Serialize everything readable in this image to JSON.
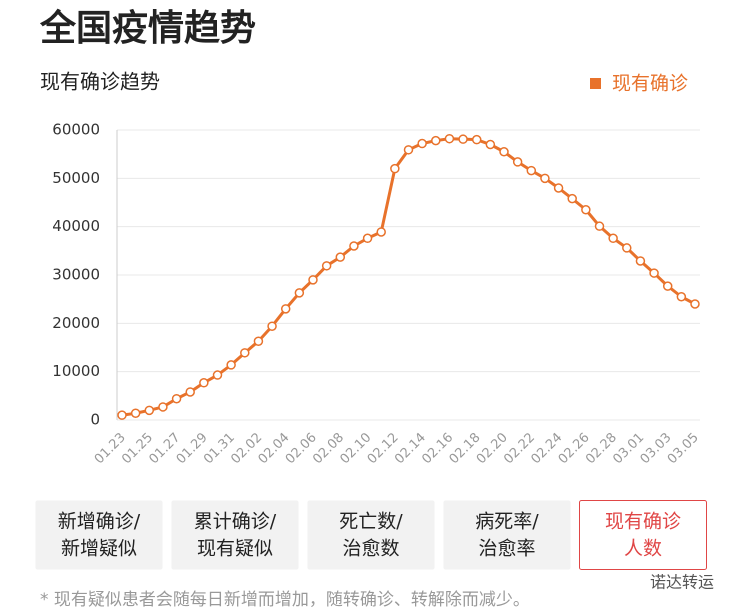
{
  "header": {
    "title": "全国疫情趋势"
  },
  "chart_data": {
    "type": "line",
    "title": "现有确诊趋势",
    "categories": [
      "01.23",
      null,
      "01.25",
      null,
      "01.27",
      null,
      "01.29",
      null,
      "01.31",
      null,
      "02.02",
      null,
      "02.04",
      null,
      "02.06",
      null,
      "02.08",
      null,
      "02.10",
      null,
      "02.12",
      null,
      "02.14",
      null,
      "02.16",
      null,
      "02.18",
      null,
      "02.20",
      null,
      "02.22",
      null,
      "02.24",
      null,
      "02.26",
      null,
      "02.28",
      null,
      "03.01",
      null,
      "03.03",
      null,
      "03.05"
    ],
    "series": [
      {
        "name": "现有确诊",
        "color": "#e8722b",
        "values": [
          1000,
          1400,
          2000,
          2700,
          4400,
          5800,
          7700,
          9300,
          11400,
          13900,
          16300,
          19400,
          23000,
          26300,
          29000,
          31900,
          33700,
          36000,
          37600,
          38900,
          52000,
          55900,
          57200,
          57800,
          58200,
          58100,
          58000,
          57000,
          55500,
          53400,
          51600,
          50000,
          48000,
          45800,
          43500,
          40100,
          37600,
          35600,
          32900,
          30400,
          27700,
          25500,
          24000
        ]
      }
    ],
    "ylim": [
      0,
      60000
    ],
    "yticks": [
      0,
      10000,
      20000,
      30000,
      40000,
      50000,
      60000
    ],
    "grid": true,
    "legend": "top-right"
  },
  "buttons": [
    [
      "新增确诊/",
      "新增疑似"
    ],
    [
      "累计确诊/",
      "现有疑似"
    ],
    [
      "死亡数/",
      "治愈数"
    ],
    [
      "病死率/",
      "治愈率"
    ],
    [
      "现有确诊",
      "人数"
    ]
  ],
  "footnote": "* 现有疑似患者会随每日新增而增加，随转确诊、转解除而减少。",
  "watermark": "诺达转运"
}
